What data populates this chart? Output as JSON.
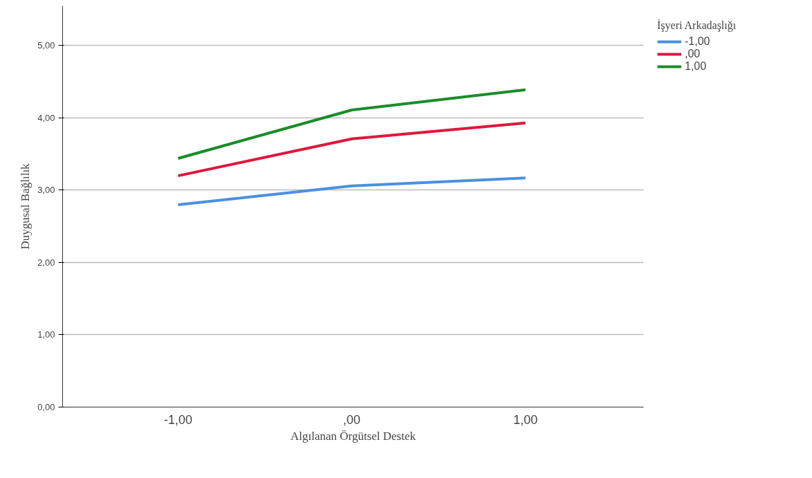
{
  "chart_data": {
    "type": "line",
    "xlabel": "Algılanan Örgütsel Destek",
    "ylabel": "Duygusal Bağlılık",
    "legend_title": "İşyeri Arkadaşlığı",
    "categories": [
      "-1,00",
      ",00",
      "1,00"
    ],
    "series": [
      {
        "name": "-1,00",
        "color": "#4a90e2",
        "values": [
          2.8,
          3.06,
          3.17
        ]
      },
      {
        "name": ",00",
        "color": "#e0173c",
        "values": [
          3.2,
          3.71,
          3.93
        ]
      },
      {
        "name": "1,00",
        "color": "#1a8c2a",
        "values": [
          3.44,
          4.11,
          4.39
        ]
      }
    ],
    "ylim": [
      0,
      5.55
    ],
    "yticks": [
      {
        "value": 0,
        "label": "0,00"
      },
      {
        "value": 1,
        "label": "1,00"
      },
      {
        "value": 2,
        "label": "2,00"
      },
      {
        "value": 3,
        "label": "3,00"
      },
      {
        "value": 4,
        "label": "4,00"
      },
      {
        "value": 5,
        "label": "5,00"
      }
    ],
    "grid": "y",
    "legend": "top right",
    "marker": "none",
    "line_style": "solid"
  }
}
